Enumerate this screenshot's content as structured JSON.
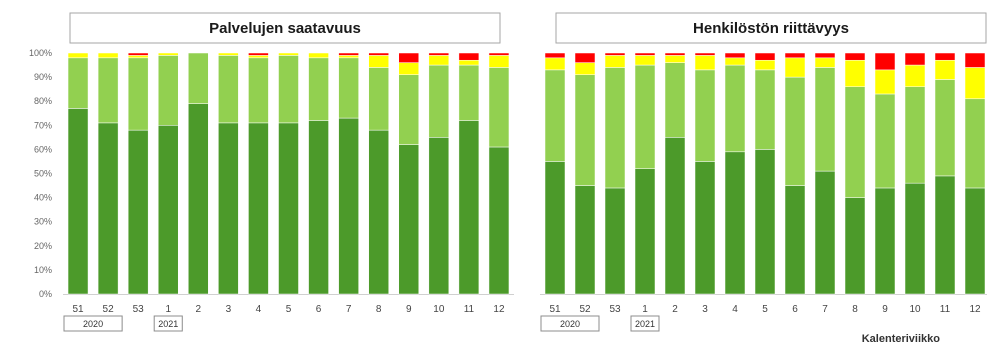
{
  "chart_data": [
    {
      "type": "bar",
      "stacked": true,
      "title": "Palvelujen saatavuus",
      "categories": [
        "51",
        "52",
        "53",
        "1",
        "2",
        "3",
        "4",
        "5",
        "6",
        "7",
        "8",
        "9",
        "10",
        "11",
        "12"
      ],
      "year_labels": [
        {
          "label": "2020",
          "first": "51",
          "last": "52"
        },
        {
          "label": "2021",
          "first": "1",
          "last": "1"
        }
      ],
      "ylim": [
        0,
        100
      ],
      "yticks": [
        "0%",
        "10%",
        "20%",
        "30%",
        "40%",
        "50%",
        "60%",
        "70%",
        "80%",
        "90%",
        "100%"
      ],
      "grid": false,
      "series": [
        {
          "color": "#4c9a2a",
          "values": [
            77,
            71,
            68,
            70,
            79,
            71,
            71,
            71,
            72,
            73,
            68,
            62,
            65,
            72,
            61
          ]
        },
        {
          "color": "#92d050",
          "values": [
            21,
            27,
            30,
            29,
            21,
            28,
            27,
            28,
            26,
            25,
            26,
            29,
            30,
            23,
            33
          ]
        },
        {
          "color": "#ffff00",
          "values": [
            2,
            2,
            1,
            1,
            0,
            1,
            1,
            1,
            2,
            1,
            5,
            5,
            4,
            2,
            5
          ]
        },
        {
          "color": "#ff0000",
          "values": [
            0,
            0,
            1,
            0,
            0,
            0,
            1,
            0,
            0,
            1,
            1,
            4,
            1,
            3,
            1
          ]
        }
      ]
    },
    {
      "type": "bar",
      "stacked": true,
      "title": "Henkilöstön riittävyys",
      "categories": [
        "51",
        "52",
        "53",
        "1",
        "2",
        "3",
        "4",
        "5",
        "6",
        "7",
        "8",
        "9",
        "10",
        "11",
        "12"
      ],
      "year_labels": [
        {
          "label": "2020",
          "first": "51",
          "last": "52"
        },
        {
          "label": "2021",
          "first": "1",
          "last": "1"
        }
      ],
      "ylim": [
        0,
        100
      ],
      "yticks": [
        "0%",
        "10%",
        "20%",
        "30%",
        "40%",
        "50%",
        "60%",
        "70%",
        "80%",
        "90%",
        "100%"
      ],
      "grid": false,
      "xlabel": "Kalenteriviikko",
      "series": [
        {
          "color": "#4c9a2a",
          "values": [
            55,
            45,
            44,
            52,
            65,
            55,
            59,
            60,
            45,
            51,
            40,
            44,
            46,
            49,
            44
          ]
        },
        {
          "color": "#92d050",
          "values": [
            38,
            46,
            50,
            43,
            31,
            38,
            36,
            33,
            45,
            43,
            46,
            39,
            40,
            40,
            37
          ]
        },
        {
          "color": "#ffff00",
          "values": [
            5,
            5,
            5,
            4,
            3,
            6,
            3,
            4,
            8,
            4,
            11,
            10,
            9,
            8,
            13
          ]
        },
        {
          "color": "#ff0000",
          "values": [
            2,
            4,
            1,
            1,
            1,
            1,
            2,
            3,
            2,
            2,
            3,
            7,
            5,
            3,
            6
          ]
        }
      ]
    }
  ]
}
